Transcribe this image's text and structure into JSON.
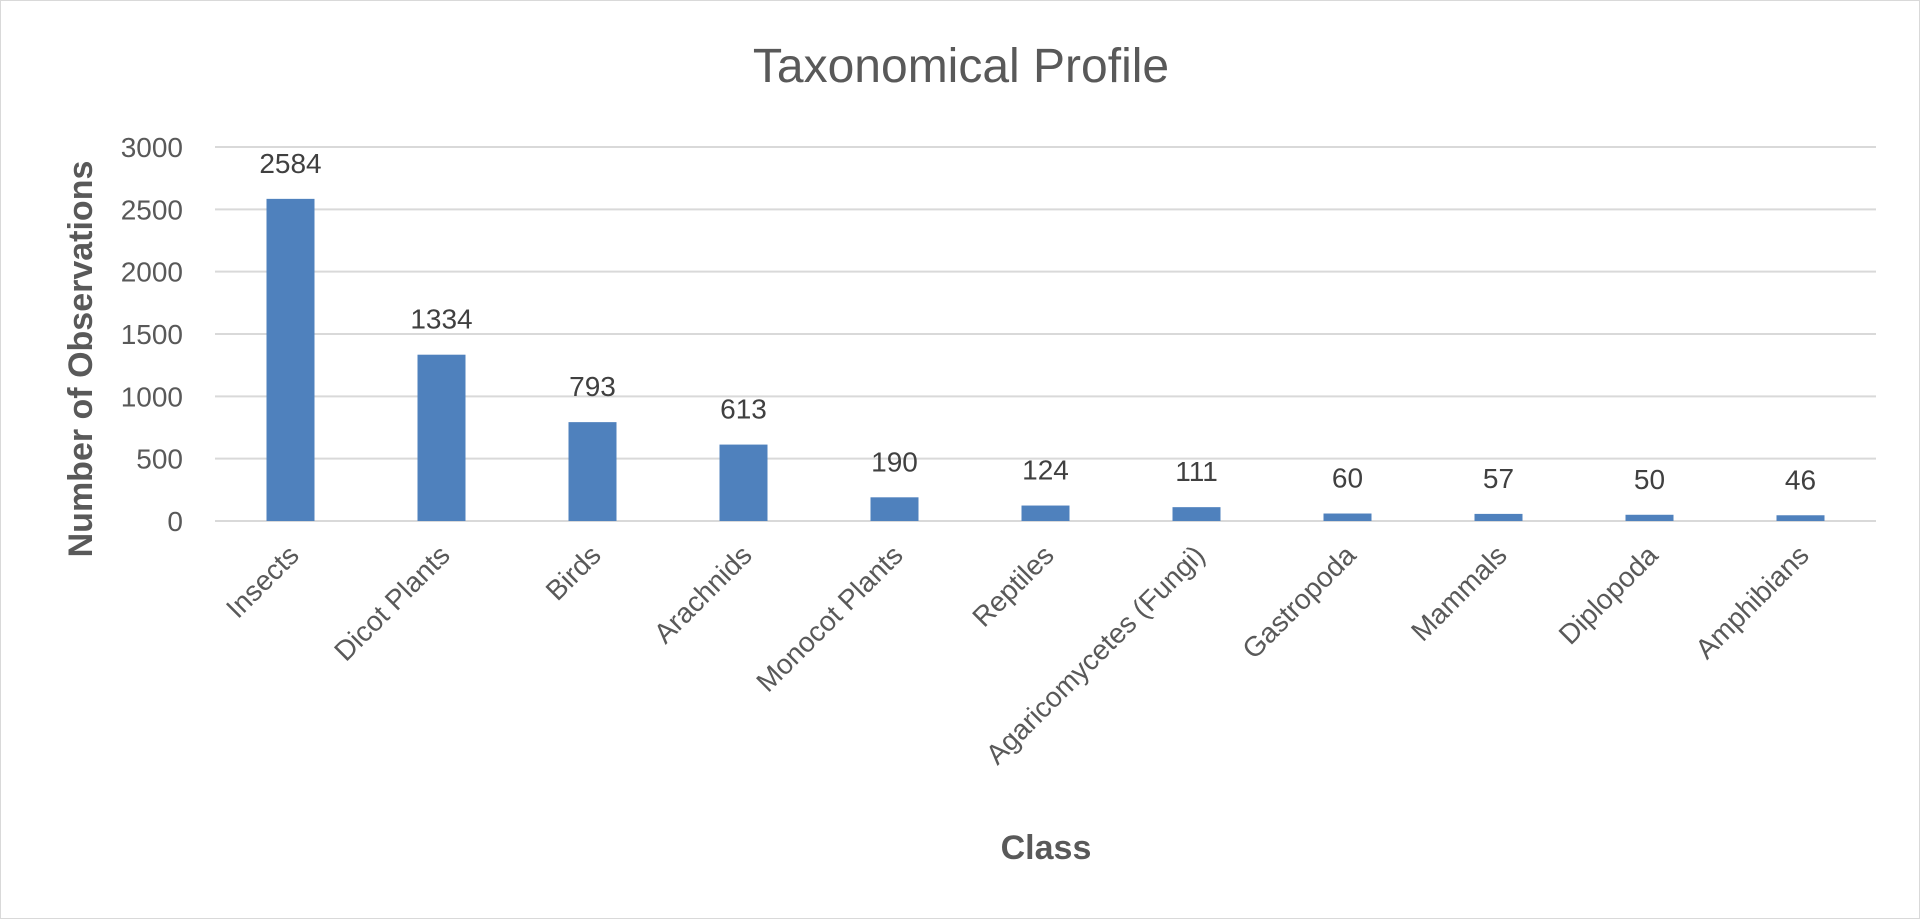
{
  "chart_data": {
    "type": "bar",
    "title": "Taxonomical Profile",
    "xlabel": "Class",
    "ylabel": "Number of Observations",
    "categories": [
      "Insects",
      "Dicot Plants",
      "Birds",
      "Arachnids",
      "Monocot Plants",
      "Reptiles",
      "Agaricomycetes (Fungi)",
      "Gastropoda",
      "Mammals",
      "Diplopoda",
      "Amphibians"
    ],
    "values": [
      2584,
      1334,
      793,
      613,
      190,
      124,
      111,
      60,
      57,
      50,
      46
    ],
    "yticks": [
      0,
      500,
      1000,
      1500,
      2000,
      2500,
      3000
    ],
    "ylim": [
      0,
      3000
    ],
    "grid": true,
    "legend": "none",
    "bar_color": "#4f81bd",
    "data_labels": true
  }
}
